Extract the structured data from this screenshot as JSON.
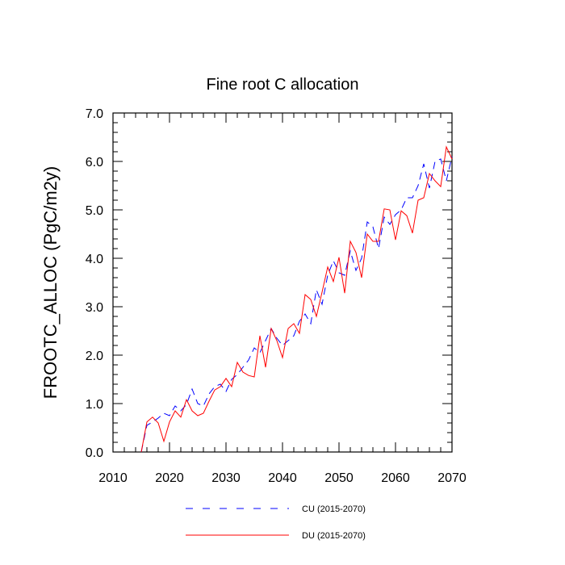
{
  "chart_data": {
    "type": "line",
    "title": "Fine root C allocation",
    "xlabel": "",
    "ylabel": "FROOTC_ALLOC  (PgC/m2y)",
    "xlim": [
      2010,
      2070
    ],
    "ylim": [
      0.0,
      7.0
    ],
    "x_ticks": [
      "2010",
      "2020",
      "2030",
      "2040",
      "2050",
      "2060",
      "2070"
    ],
    "y_ticks": [
      "0.0",
      "1.0",
      "2.0",
      "3.0",
      "4.0",
      "5.0",
      "6.0",
      "7.0"
    ],
    "x_tick_values": [
      2010,
      2020,
      2030,
      2040,
      2050,
      2060,
      2070
    ],
    "y_tick_values": [
      0,
      1,
      2,
      3,
      4,
      5,
      6,
      7
    ],
    "series": [
      {
        "name": "CU (2015-2070)",
        "color": "#0000ff",
        "dash": "dashed",
        "x": [
          2015,
          2016,
          2017,
          2018,
          2019,
          2020,
          2021,
          2022,
          2023,
          2024,
          2025,
          2026,
          2027,
          2028,
          2029,
          2030,
          2031,
          2032,
          2033,
          2034,
          2035,
          2036,
          2037,
          2038,
          2039,
          2040,
          2041,
          2042,
          2043,
          2044,
          2045,
          2046,
          2047,
          2048,
          2049,
          2050,
          2051,
          2052,
          2053,
          2054,
          2055,
          2056,
          2057,
          2058,
          2059,
          2060,
          2061,
          2062,
          2063,
          2064,
          2065,
          2066,
          2067,
          2068,
          2069,
          2070
        ],
        "values": [
          0.0,
          0.55,
          0.62,
          0.7,
          0.8,
          0.75,
          0.95,
          0.85,
          0.98,
          1.3,
          1.0,
          0.95,
          1.2,
          1.35,
          1.4,
          1.25,
          1.5,
          1.6,
          1.75,
          1.9,
          2.15,
          2.05,
          2.3,
          2.55,
          2.35,
          2.2,
          2.3,
          2.4,
          2.7,
          2.85,
          2.65,
          3.35,
          3.05,
          3.65,
          3.95,
          3.7,
          3.65,
          4.15,
          3.75,
          4.0,
          4.75,
          4.65,
          4.2,
          4.85,
          4.7,
          4.9,
          5.0,
          5.25,
          5.25,
          5.5,
          5.95,
          5.45,
          6.0,
          6.05,
          5.6,
          6.1
        ]
      },
      {
        "name": "DU (2015-2070)",
        "color": "#ff0000",
        "dash": "solid",
        "x": [
          2015,
          2016,
          2017,
          2018,
          2019,
          2020,
          2021,
          2022,
          2023,
          2024,
          2025,
          2026,
          2027,
          2028,
          2029,
          2030,
          2031,
          2032,
          2033,
          2034,
          2035,
          2036,
          2037,
          2038,
          2039,
          2040,
          2041,
          2042,
          2043,
          2044,
          2045,
          2046,
          2047,
          2048,
          2049,
          2050,
          2051,
          2052,
          2053,
          2054,
          2055,
          2056,
          2057,
          2058,
          2059,
          2060,
          2061,
          2062,
          2063,
          2064,
          2065,
          2066,
          2067,
          2068,
          2069,
          2070
        ],
        "values": [
          0.0,
          0.62,
          0.72,
          0.6,
          0.22,
          0.62,
          0.85,
          0.72,
          1.08,
          0.85,
          0.75,
          0.8,
          1.05,
          1.28,
          1.35,
          1.52,
          1.35,
          1.85,
          1.65,
          1.58,
          1.55,
          2.4,
          1.75,
          2.55,
          2.3,
          1.95,
          2.55,
          2.65,
          2.45,
          3.25,
          3.15,
          2.8,
          3.3,
          3.82,
          3.52,
          4.02,
          3.28,
          4.35,
          4.12,
          3.6,
          4.5,
          4.35,
          4.35,
          5.02,
          5.0,
          4.38,
          4.98,
          4.88,
          4.52,
          5.2,
          5.25,
          5.75,
          5.6,
          5.48,
          6.3,
          6.05
        ]
      }
    ],
    "legend_position": "bottom"
  }
}
